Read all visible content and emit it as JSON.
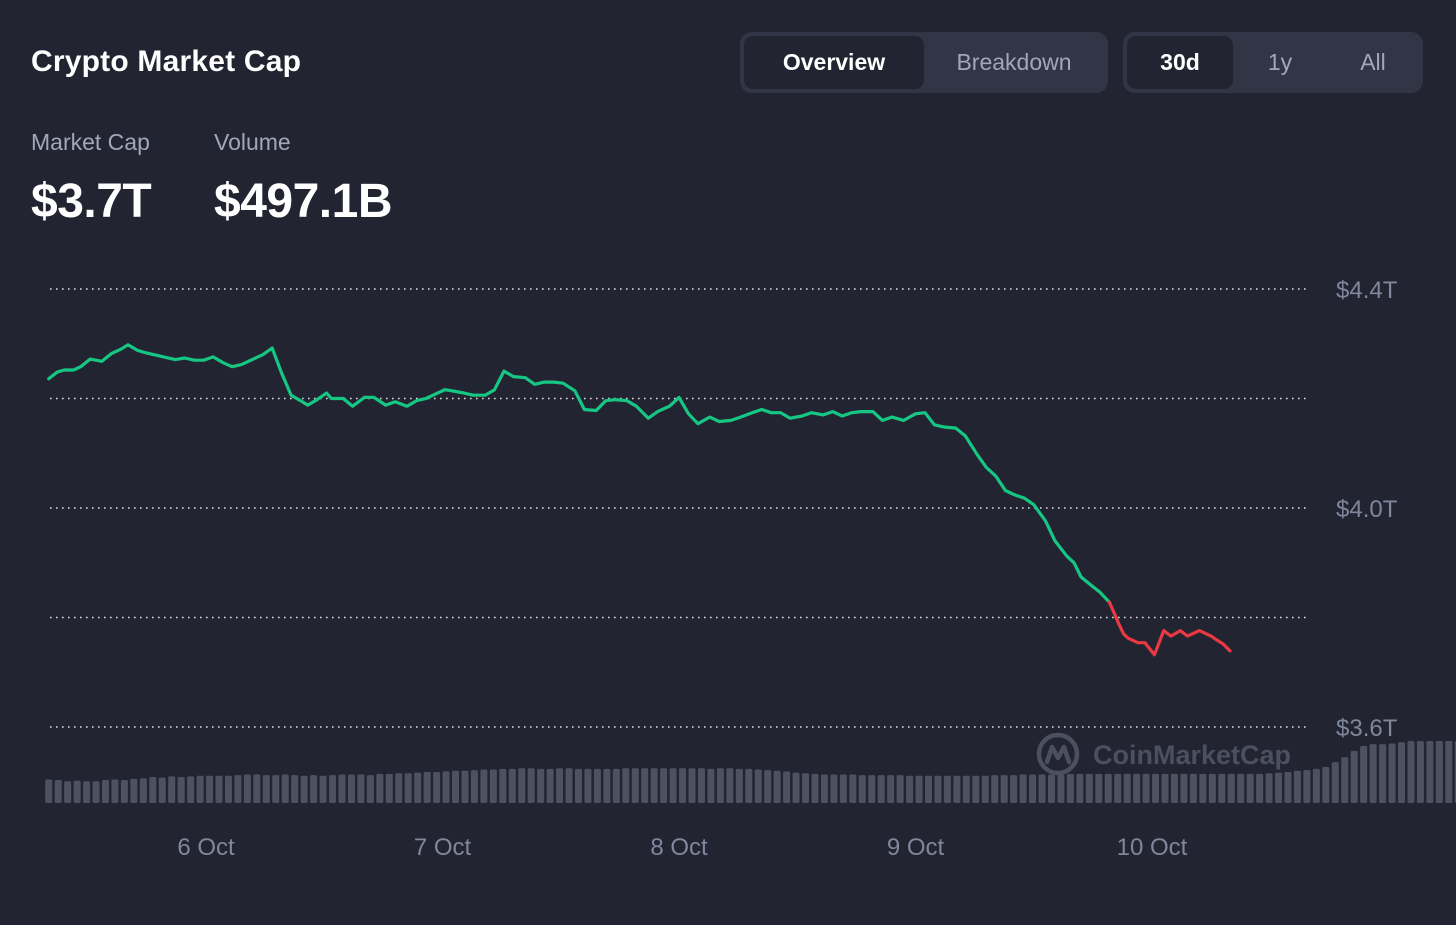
{
  "header": {
    "title": "Crypto Market Cap",
    "view_tabs": [
      {
        "label": "Overview",
        "active": true
      },
      {
        "label": "Breakdown",
        "active": false
      }
    ],
    "range_tabs": [
      {
        "label": "30d",
        "active": true
      },
      {
        "label": "1y",
        "active": false
      },
      {
        "label": "All",
        "active": false
      }
    ]
  },
  "stats": {
    "market_cap_label": "Market Cap",
    "market_cap_value": "$3.7T",
    "volume_label": "Volume",
    "volume_value": "$497.1B"
  },
  "watermark": "CoinMarketCap",
  "colors": {
    "background": "#222531",
    "up_line": "#16c784",
    "down_line": "#ea3943",
    "volume_bars": "#4d5162",
    "grid": "#ffffff",
    "muted_text": "#80869c"
  },
  "chart_data": {
    "type": "line",
    "y_unit": "USD trillions",
    "ylim": [
      3.6,
      4.4
    ],
    "y_ticks": [
      {
        "value": 4.4,
        "label": "$4.4T"
      },
      {
        "value": 4.0,
        "label": "$4.0T"
      },
      {
        "value": 3.6,
        "label": "$3.6T"
      }
    ],
    "y_grid_values": [
      4.4,
      4.2,
      4.0,
      3.8,
      3.6
    ],
    "x_ticks": [
      {
        "value": 0,
        "label": "6 Oct"
      },
      {
        "value": 1,
        "label": "7 Oct"
      },
      {
        "value": 2,
        "label": "8 Oct"
      },
      {
        "value": 3,
        "label": "9 Oct"
      },
      {
        "value": 4,
        "label": "10 Oct"
      }
    ],
    "x_range": [
      -0.665,
      4.6
    ],
    "split_x": 3.82,
    "series": [
      {
        "x": [
          -0.665,
          -0.63,
          -0.6,
          -0.56,
          -0.53,
          -0.49,
          -0.44,
          -0.4,
          -0.36,
          -0.33,
          -0.29,
          -0.25,
          -0.21,
          -0.17,
          -0.13,
          -0.09,
          -0.05,
          -0.01,
          0.03,
          0.07,
          0.11,
          0.15,
          0.2,
          0.24,
          0.28,
          0.32,
          0.36,
          0.4,
          0.43,
          0.47,
          0.51,
          0.53,
          0.58,
          0.62,
          0.67,
          0.71,
          0.76,
          0.8,
          0.85,
          0.89,
          0.93,
          0.97,
          1.01,
          1.04,
          1.09,
          1.13,
          1.18,
          1.22,
          1.26,
          1.3,
          1.35,
          1.39,
          1.43,
          1.47,
          1.51,
          1.56,
          1.6,
          1.65,
          1.69,
          1.73,
          1.78,
          1.82,
          1.87,
          1.91,
          1.96,
          2.0,
          2.04,
          2.08,
          2.13,
          2.17,
          2.22,
          2.26,
          2.31,
          2.35,
          2.39,
          2.43,
          2.47,
          2.52,
          2.56,
          2.61,
          2.65,
          2.69,
          2.73,
          2.77,
          2.82,
          2.86,
          2.9,
          2.95,
          3.0,
          3.04,
          3.08,
          3.12,
          3.17,
          3.21,
          3.26,
          3.3,
          3.34,
          3.38,
          3.42,
          3.46,
          3.5,
          3.55,
          3.59,
          3.64,
          3.67,
          3.7,
          3.74,
          3.78,
          3.82,
          3.84,
          3.86,
          3.88,
          3.9,
          3.94,
          3.97,
          4.01,
          4.05,
          4.08,
          4.12,
          4.15,
          4.2,
          4.25,
          4.27,
          4.3,
          4.33
        ],
        "y": [
          4.236,
          4.248,
          4.252,
          4.252,
          4.258,
          4.272,
          4.268,
          4.282,
          4.29,
          4.298,
          4.288,
          4.283,
          4.279,
          4.275,
          4.271,
          4.274,
          4.27,
          4.27,
          4.276,
          4.266,
          4.258,
          4.262,
          4.272,
          4.28,
          4.292,
          4.246,
          4.206,
          4.196,
          4.188,
          4.198,
          4.21,
          4.2,
          4.2,
          4.186,
          4.202,
          4.202,
          4.188,
          4.194,
          4.186,
          4.196,
          4.2,
          4.208,
          4.216,
          4.214,
          4.21,
          4.206,
          4.206,
          4.216,
          4.25,
          4.24,
          4.238,
          4.226,
          4.23,
          4.23,
          4.228,
          4.214,
          4.18,
          4.178,
          4.196,
          4.198,
          4.196,
          4.186,
          4.164,
          4.176,
          4.186,
          4.202,
          4.172,
          4.154,
          4.166,
          4.158,
          4.16,
          4.166,
          4.174,
          4.18,
          4.174,
          4.174,
          4.164,
          4.168,
          4.174,
          4.17,
          4.176,
          4.168,
          4.174,
          4.176,
          4.176,
          4.16,
          4.166,
          4.16,
          4.172,
          4.174,
          4.152,
          4.148,
          4.146,
          4.132,
          4.098,
          4.074,
          4.058,
          4.032,
          4.024,
          4.018,
          4.006,
          3.976,
          3.94,
          3.912,
          3.9,
          3.874,
          3.86,
          3.846,
          3.828,
          3.808,
          3.788,
          3.77,
          3.762,
          3.754,
          3.754,
          3.732,
          3.776,
          3.766,
          3.776,
          3.766,
          3.776,
          3.766,
          3.76,
          3.752,
          3.739
        ]
      }
    ],
    "volume": {
      "x_start": -0.665,
      "x_step": 0.04,
      "relative_heights": [
        0.38,
        0.37,
        0.35,
        0.36,
        0.35,
        0.35,
        0.37,
        0.38,
        0.37,
        0.39,
        0.4,
        0.42,
        0.41,
        0.43,
        0.42,
        0.43,
        0.44,
        0.44,
        0.44,
        0.44,
        0.45,
        0.46,
        0.46,
        0.45,
        0.45,
        0.46,
        0.45,
        0.44,
        0.45,
        0.44,
        0.45,
        0.46,
        0.46,
        0.46,
        0.45,
        0.47,
        0.47,
        0.48,
        0.48,
        0.49,
        0.5,
        0.5,
        0.51,
        0.52,
        0.52,
        0.53,
        0.54,
        0.54,
        0.55,
        0.55,
        0.56,
        0.56,
        0.55,
        0.55,
        0.56,
        0.56,
        0.55,
        0.55,
        0.55,
        0.55,
        0.55,
        0.56,
        0.56,
        0.56,
        0.56,
        0.56,
        0.56,
        0.56,
        0.56,
        0.56,
        0.55,
        0.56,
        0.56,
        0.55,
        0.55,
        0.54,
        0.53,
        0.52,
        0.51,
        0.49,
        0.48,
        0.47,
        0.46,
        0.46,
        0.46,
        0.46,
        0.45,
        0.45,
        0.45,
        0.45,
        0.45,
        0.44,
        0.44,
        0.44,
        0.44,
        0.44,
        0.44,
        0.44,
        0.44,
        0.44,
        0.45,
        0.45,
        0.45,
        0.46,
        0.46,
        0.46,
        0.46,
        0.46,
        0.47,
        0.47,
        0.47,
        0.47,
        0.47,
        0.47,
        0.47,
        0.47,
        0.47,
        0.47,
        0.47,
        0.47,
        0.47,
        0.47,
        0.47,
        0.47,
        0.47,
        0.47,
        0.47,
        0.47,
        0.47,
        0.48,
        0.49,
        0.5,
        0.52,
        0.53,
        0.55,
        0.58,
        0.66,
        0.74,
        0.84,
        0.92,
        0.95,
        0.95,
        0.96,
        0.98,
        1.0,
        1.0,
        1.0,
        1.0,
        1.0,
        1.0,
        0.98,
        0.98
      ]
    }
  }
}
